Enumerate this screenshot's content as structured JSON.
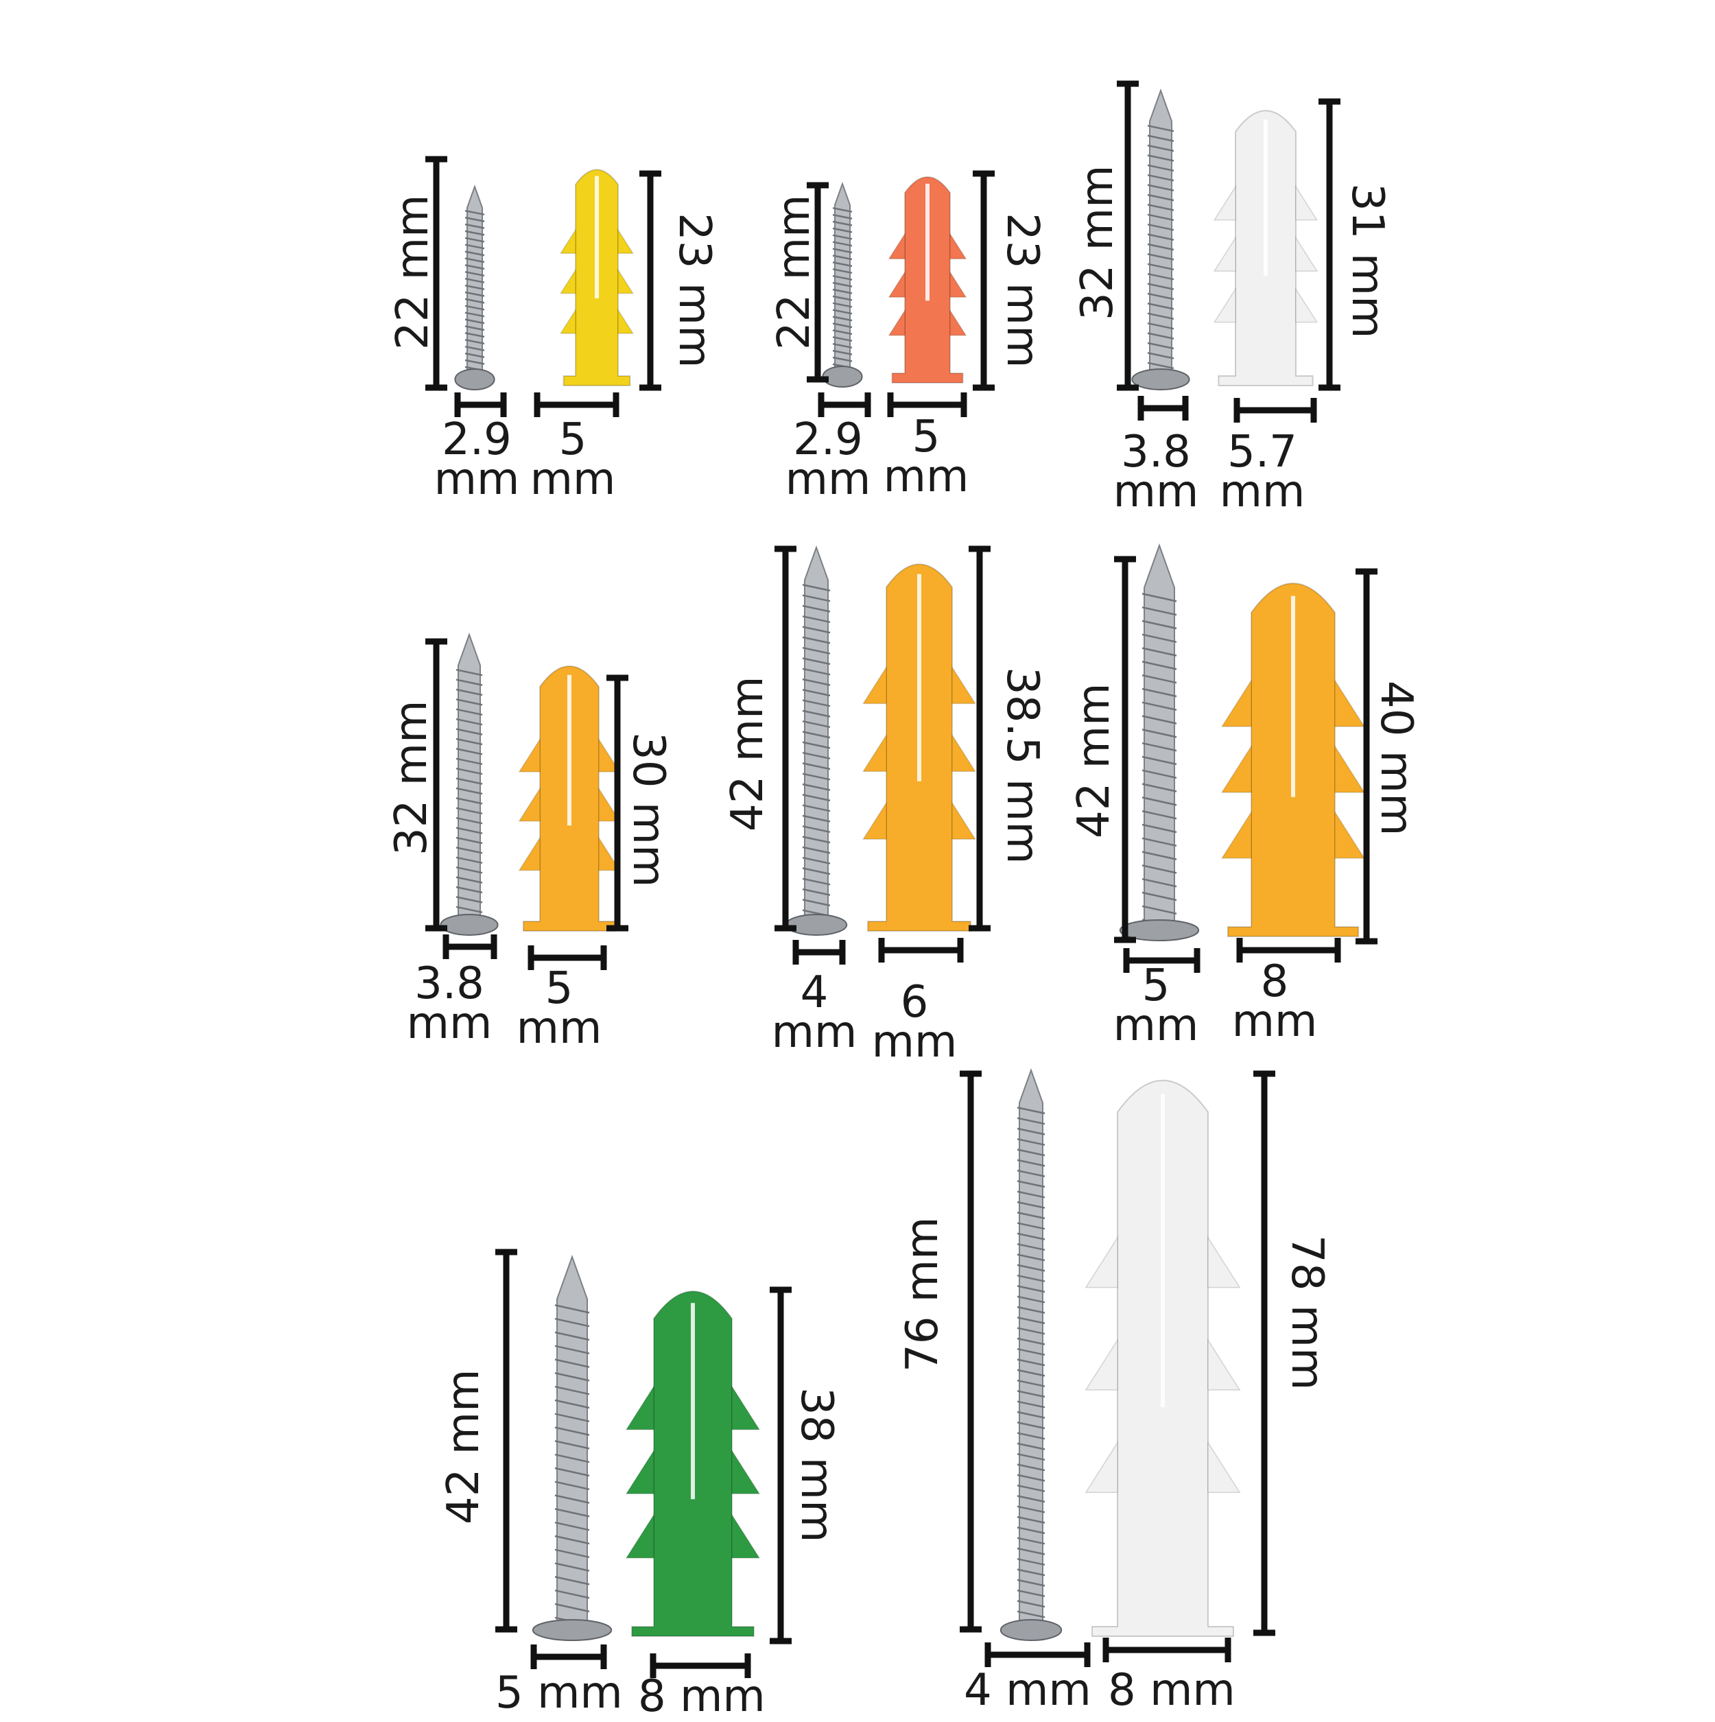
{
  "colors": {
    "background": "#ffffff",
    "rule": "#111111",
    "screw_metal": "#b9bcc0",
    "plug_yellow": "#f2d21a",
    "plug_red_orange": "#f2764f",
    "plug_white": "#f1f1f1",
    "plug_orange": "#f7ad2a",
    "plug_green": "#2e9b42"
  },
  "sets": [
    {
      "screw_plug_set": 1,
      "screw_length": "22 mm",
      "plug_length": "23 mm",
      "screw_diameter": [
        "2.9",
        "mm"
      ],
      "plug_diameter": [
        "5",
        "mm"
      ],
      "plug_color": "yellow"
    },
    {
      "screw_plug_set": 2,
      "screw_length": "22 mm",
      "plug_length": "23 mm",
      "screw_diameter": [
        "2.9",
        "mm"
      ],
      "plug_diameter": [
        "5",
        "mm"
      ],
      "plug_color": "red-orange"
    },
    {
      "screw_plug_set": 3,
      "screw_length": "32 mm",
      "plug_length": "31 mm",
      "screw_diameter": [
        "3.8",
        "mm"
      ],
      "plug_diameter": [
        "5.7",
        "mm"
      ],
      "plug_color": "white"
    },
    {
      "screw_plug_set": 4,
      "screw_length": "32 mm",
      "plug_length": "30 mm",
      "screw_diameter": [
        "3.8",
        "mm"
      ],
      "plug_diameter": [
        "5",
        "mm"
      ],
      "plug_color": "orange"
    },
    {
      "screw_plug_set": 5,
      "screw_length": "42 mm",
      "plug_length": "38.5 mm",
      "screw_diameter": [
        "4",
        "mm"
      ],
      "plug_diameter": [
        "6",
        "mm"
      ],
      "plug_color": "orange"
    },
    {
      "screw_plug_set": 6,
      "screw_length": "42 mm",
      "plug_length": "40 mm",
      "screw_diameter": [
        "5",
        "mm"
      ],
      "plug_diameter": [
        "8",
        "mm"
      ],
      "plug_color": "orange"
    },
    {
      "screw_plug_set": 7,
      "screw_length": "42 mm",
      "plug_length": "38 mm",
      "screw_diameter": [
        "5 mm"
      ],
      "plug_diameter": [
        "8 mm"
      ],
      "plug_color": "green"
    },
    {
      "screw_plug_set": 8,
      "screw_length": "76 mm",
      "plug_length": "78 mm",
      "screw_diameter": [
        "4 mm"
      ],
      "plug_diameter": [
        "8 mm"
      ],
      "plug_color": "white"
    }
  ]
}
